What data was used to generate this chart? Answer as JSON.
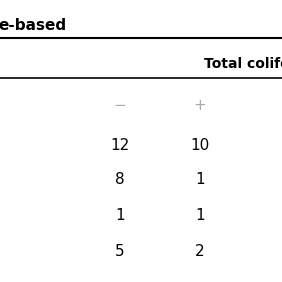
{
  "title": "e-based",
  "col_header": "Total colife",
  "subheaders": [
    "−",
    "+"
  ],
  "rows": [
    [
      "12",
      "10"
    ],
    [
      "8",
      "1"
    ],
    [
      "1",
      "1"
    ],
    [
      "5",
      "2"
    ]
  ],
  "bg_color": "#ffffff",
  "text_color": "#000000",
  "subheader_color": "#aaaaaa",
  "title_fontsize": 11,
  "header_fontsize": 10,
  "cell_fontsize": 11
}
